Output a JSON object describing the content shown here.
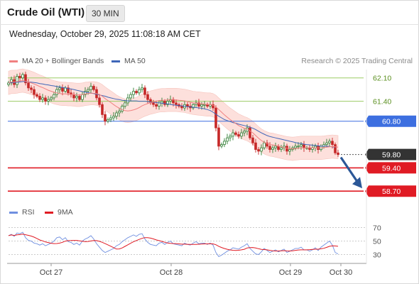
{
  "header": {
    "instrument": "Crude Oil (WTI)",
    "interval": "30 MIN"
  },
  "datetime": "Wednesday, October 29, 2025 11:08:18 AM CET",
  "legend": {
    "ma20_label": "MA 20 + Bollinger Bands",
    "ma50_label": "MA 50"
  },
  "credit": "Research © 2025 Trading Central",
  "rsi_legend": {
    "rsi_label": "RSI",
    "ma_label": "9MA"
  },
  "colors": {
    "ma20": "#f08080",
    "ma50": "#3f66b8",
    "band_fill": "#fde0dc",
    "bull": "#2e7d32",
    "bear": "#c62828",
    "resistance": "#9ccc65",
    "pivot": "#3d6fe0",
    "support": "#e01b24",
    "current": "#333333",
    "rsi": "#6f8fe0",
    "rsi_ma": "#e01b24",
    "arrow": "#2b5797"
  },
  "chart_data": [
    {
      "type": "candlestick",
      "title": "Crude Oil (WTI) 30 MIN",
      "ylim": [
        58.3,
        62.35
      ],
      "x_ticks": [
        "Oct 27",
        "Oct 28",
        "Oct 29",
        "Oct 30"
      ],
      "levels": [
        {
          "value": 62.1,
          "label": "62.10",
          "kind": "resistance"
        },
        {
          "value": 61.4,
          "label": "61.40",
          "kind": "resistance"
        },
        {
          "value": 60.8,
          "label": "60.80",
          "kind": "pivot"
        },
        {
          "value": 59.8,
          "label": "59.80",
          "kind": "current"
        },
        {
          "value": 59.4,
          "label": "59.40",
          "kind": "support"
        },
        {
          "value": 58.7,
          "label": "58.70",
          "kind": "support"
        }
      ],
      "close": [
        61.95,
        62.05,
        61.9,
        62.15,
        62.1,
        62.2,
        61.95,
        61.8,
        61.75,
        61.6,
        61.55,
        61.45,
        61.5,
        61.4,
        61.45,
        61.5,
        61.6,
        61.75,
        61.8,
        61.7,
        61.8,
        61.65,
        61.6,
        61.5,
        61.55,
        61.45,
        61.6,
        61.7,
        61.75,
        61.85,
        61.75,
        61.5,
        61.3,
        61.0,
        60.8,
        60.85,
        60.9,
        60.95,
        61.05,
        61.1,
        61.25,
        61.35,
        61.5,
        61.6,
        61.7,
        61.65,
        61.75,
        61.8,
        61.6,
        61.45,
        61.35,
        61.3,
        61.25,
        61.35,
        61.4,
        61.3,
        61.4,
        61.45,
        61.35,
        61.3,
        61.25,
        61.2,
        61.3,
        61.25,
        61.2,
        61.3,
        61.35,
        61.25,
        61.3,
        61.3,
        61.25,
        61.3,
        61.2,
        60.6,
        60.05,
        60.1,
        60.2,
        60.3,
        60.35,
        60.45,
        60.4,
        60.35,
        60.45,
        60.5,
        60.6,
        60.3,
        60.15,
        59.95,
        59.9,
        60.0,
        60.15,
        60.05,
        59.95,
        60.0,
        60.05,
        59.95,
        60.0,
        60.05,
        59.9,
        59.95,
        60.0,
        60.05,
        60.05,
        60.1,
        60.0,
        60.0,
        59.95,
        60.0,
        60.05,
        59.95,
        60.05,
        60.1,
        60.15,
        60.2,
        60.1,
        59.85,
        59.8
      ],
      "ma20": [
        61.95,
        61.98,
        61.98,
        61.99,
        62.01,
        62.02,
        62.0,
        61.98,
        61.95,
        61.92,
        61.88,
        61.84,
        61.81,
        61.77,
        61.73,
        61.7,
        61.67,
        61.65,
        61.63,
        61.62,
        61.62,
        61.61,
        61.61,
        61.6,
        61.59,
        61.59,
        61.6,
        61.62,
        61.63,
        61.64,
        61.64,
        61.63,
        61.6,
        61.55,
        61.48,
        61.42,
        61.36,
        61.3,
        61.24,
        61.19,
        61.15,
        61.12,
        61.11,
        61.12,
        61.14,
        61.17,
        61.21,
        61.26,
        61.3,
        61.33,
        61.36,
        61.38,
        61.4,
        61.42,
        61.43,
        61.43,
        61.44,
        61.44,
        61.44,
        61.44,
        61.43,
        61.42,
        61.41,
        61.39,
        61.37,
        61.35,
        61.34,
        61.33,
        61.32,
        61.31,
        61.3,
        61.3,
        61.28,
        61.23,
        61.15,
        61.07,
        60.99,
        60.92,
        60.85,
        60.79,
        60.73,
        60.67,
        60.63,
        60.59,
        60.56,
        60.51,
        60.45,
        60.37,
        60.29,
        60.22,
        60.17,
        60.13,
        60.1,
        60.09,
        60.07,
        60.05,
        60.03,
        60.01,
        59.99,
        59.98,
        59.97,
        59.98,
        59.99,
        60.0,
        60.0,
        60.0,
        60.0,
        60.0,
        60.0,
        60.0,
        60.0,
        60.01,
        60.02,
        60.03,
        60.04,
        60.03,
        60.02
      ],
      "ma50": [
        61.95,
        61.96,
        61.96,
        61.97,
        61.98,
        61.99,
        61.99,
        61.98,
        61.97,
        61.96,
        61.95,
        61.93,
        61.92,
        61.9,
        61.89,
        61.87,
        61.86,
        61.84,
        61.83,
        61.81,
        61.8,
        61.78,
        61.77,
        61.75,
        61.73,
        61.71,
        61.69,
        61.67,
        61.66,
        61.64,
        61.63,
        61.61,
        61.59,
        61.57,
        61.55,
        61.52,
        61.5,
        61.48,
        61.46,
        61.45,
        61.43,
        61.42,
        61.41,
        61.41,
        61.41,
        61.41,
        61.4,
        61.4,
        61.4,
        61.39,
        61.38,
        61.37,
        61.36,
        61.35,
        61.34,
        61.33,
        61.32,
        61.3,
        61.29,
        61.28,
        61.27,
        61.26,
        61.25,
        61.24,
        61.23,
        61.22,
        61.21,
        61.2,
        61.19,
        61.17,
        61.15,
        61.12,
        61.07,
        61.01,
        60.95,
        60.9,
        60.85,
        60.82,
        60.79,
        60.76,
        60.74,
        60.71,
        60.69,
        60.67,
        60.65,
        60.62,
        60.59,
        60.55,
        60.5,
        60.45,
        60.41,
        60.37,
        60.34,
        60.32,
        60.3,
        60.28,
        60.26,
        60.24,
        60.22,
        60.2,
        60.18,
        60.16,
        60.14,
        60.13,
        60.11,
        60.1,
        60.09,
        60.08,
        60.07,
        60.06,
        60.05,
        60.05,
        60.05,
        60.04,
        60.03,
        60.02
      ]
    },
    {
      "type": "line",
      "title": "RSI",
      "ylim": [
        20,
        80
      ],
      "y_ticks": [
        70,
        50,
        30
      ],
      "series": [
        {
          "name": "RSI",
          "values": [
            58,
            60,
            57,
            62,
            61,
            63,
            55,
            51,
            50,
            47,
            46,
            44,
            46,
            43,
            45,
            47,
            50,
            55,
            56,
            52,
            55,
            49,
            48,
            45,
            47,
            44,
            50,
            53,
            55,
            58,
            53,
            46,
            41,
            36,
            33,
            35,
            37,
            39,
            43,
            45,
            49,
            52,
            55,
            57,
            59,
            57,
            60,
            61,
            53,
            48,
            45,
            44,
            43,
            47,
            48,
            45,
            48,
            50,
            46,
            45,
            44,
            43,
            47,
            45,
            44,
            47,
            49,
            46,
            47,
            47,
            45,
            47,
            44,
            33,
            27,
            29,
            32,
            35,
            37,
            40,
            39,
            38,
            41,
            43,
            46,
            39,
            35,
            31,
            30,
            34,
            39,
            36,
            33,
            35,
            37,
            34,
            36,
            38,
            33,
            35,
            37,
            39,
            39,
            41,
            37,
            37,
            35,
            37,
            40,
            36,
            41,
            44,
            47,
            50,
            44,
            33,
            31
          ]
        },
        {
          "name": "9MA",
          "values": [
            58,
            59,
            58.3,
            59.3,
            59.6,
            60.2,
            59.4,
            58.4,
            57.4,
            55.8,
            53.8,
            51.6,
            50.3,
            48.6,
            47.8,
            46.7,
            46.2,
            46.3,
            47.0,
            48.1,
            49.9,
            50.6,
            50.7,
            50.9,
            50.9,
            50.3,
            49.7,
            49.0,
            49.4,
            50.1,
            50.8,
            50.6,
            49.6,
            48.1,
            46.2,
            44.3,
            42.3,
            40.2,
            38.1,
            38.3,
            39.8,
            42.1,
            44.4,
            46.7,
            49.0,
            50.7,
            52.4,
            54.0,
            55.1,
            55.0,
            54.3,
            53.2,
            51.7,
            50.6,
            49.5,
            48.2,
            47.1,
            46.6,
            46.3,
            46.2,
            45.8,
            45.4,
            45.4,
            45.2,
            45.0,
            45.0,
            45.1,
            45.3,
            45.5,
            45.8,
            45.8,
            46.0,
            45.8,
            44.5,
            42.2,
            40.4,
            38.9,
            37.8,
            36.8,
            36.3,
            36.1,
            36.3,
            36.9,
            37.8,
            39.8,
            40.3,
            40.4,
            39.7,
            38.6,
            37.7,
            37.4,
            36.9,
            36.2,
            35.6,
            35.3,
            35.3,
            35.5,
            35.8,
            35.4,
            35.3,
            35.6,
            36.2,
            36.7,
            37.0,
            37.0,
            37.0,
            37.3,
            37.7,
            37.9,
            37.9,
            38.5,
            39.3,
            40.6,
            42.2,
            42.8,
            42.7,
            42.2
          ]
        }
      ]
    }
  ]
}
